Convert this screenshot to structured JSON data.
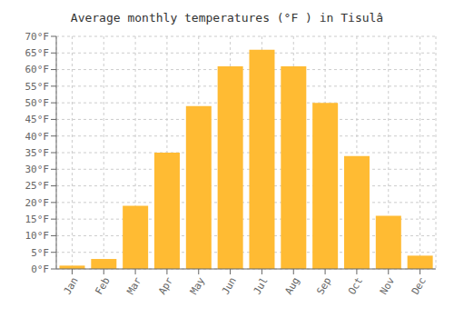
{
  "chart_data": {
    "type": "bar",
    "title": "Average monthly temperatures (°F ) in Tisulâ",
    "categories": [
      "Jan",
      "Feb",
      "Mar",
      "Apr",
      "May",
      "Jun",
      "Jul",
      "Aug",
      "Sep",
      "Oct",
      "Nov",
      "Dec"
    ],
    "values": [
      1,
      3,
      19,
      35,
      49,
      61,
      66,
      61,
      50,
      34,
      16,
      4
    ],
    "color": "#FFBB33",
    "ylim": [
      0,
      70
    ],
    "yticks": [
      {
        "value": 0,
        "label": "0°F"
      },
      {
        "value": 5,
        "label": "5°F"
      },
      {
        "value": 10,
        "label": "10°F"
      },
      {
        "value": 15,
        "label": "15°F"
      },
      {
        "value": 20,
        "label": "20°F"
      },
      {
        "value": 25,
        "label": "25°F"
      },
      {
        "value": 30,
        "label": "30°F"
      },
      {
        "value": 35,
        "label": "35°F"
      },
      {
        "value": 40,
        "label": "40°F"
      },
      {
        "value": 45,
        "label": "45°F"
      },
      {
        "value": 50,
        "label": "50°F"
      },
      {
        "value": 55,
        "label": "55°F"
      },
      {
        "value": 60,
        "label": "60°F"
      },
      {
        "value": 65,
        "label": "65°F"
      },
      {
        "value": 70,
        "label": "70°F"
      }
    ],
    "grid": true
  }
}
